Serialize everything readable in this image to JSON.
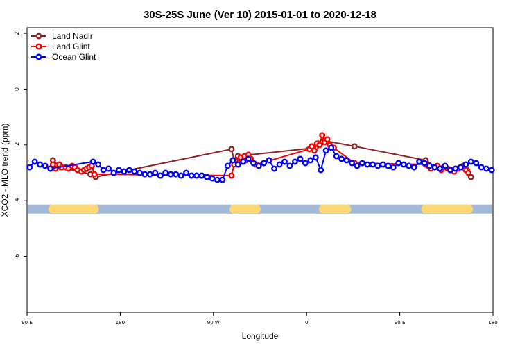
{
  "chart_data": {
    "type": "line",
    "title": "30S-25S June (Ver 10)   2015-01-01 to 2020-12-18",
    "xlabel": "Longitude",
    "ylabel": "XCO2 - MLO trend (ppm)",
    "xlim": [
      0,
      360
    ],
    "ylim": [
      -8,
      2.2
    ],
    "x_ticks": [
      {
        "value": 0,
        "label": "90 E"
      },
      {
        "value": 72,
        "label": "180"
      },
      {
        "value": 144,
        "label": "90 W"
      },
      {
        "value": 216,
        "label": "0"
      },
      {
        "value": 288,
        "label": "90 E"
      },
      {
        "value": 360,
        "label": "180"
      }
    ],
    "y_ticks": [
      {
        "value": 2,
        "label": "2"
      },
      {
        "value": 0,
        "label": "0"
      },
      {
        "value": -2,
        "label": "-2"
      },
      {
        "value": -4,
        "label": "-4"
      },
      {
        "value": -6,
        "label": "-6"
      }
    ],
    "legend_position": "top-left",
    "band": {
      "y": -4.3,
      "ocean_color": "#a3b9d8",
      "land_color": "#fcd774",
      "land_segments": [
        [
          20,
          52
        ],
        [
          160,
          177
        ],
        [
          229,
          243
        ],
        [
          246,
          247
        ],
        [
          308,
          341
        ]
      ]
    },
    "series": [
      {
        "name": "Land Nadir",
        "color": "#8b2323",
        "x": [
          20,
          26,
          49,
          53,
          158,
          160,
          163,
          223,
          225,
          228,
          230,
          253,
          308,
          310,
          340,
          343
        ],
        "y": [
          -2.55,
          -2.8,
          -3.05,
          -3.15,
          -2.15,
          -2.55,
          -2.4,
          -2.1,
          -1.95,
          -1.9,
          -1.85,
          -2.05,
          -2.55,
          -2.7,
          -2.9,
          -3.15
        ]
      },
      {
        "name": "Land Glint",
        "color": "#ff0000",
        "x": [
          20,
          22,
          25,
          27,
          30,
          32,
          35,
          37,
          39,
          42,
          44,
          46,
          48,
          50,
          52,
          158,
          160,
          161,
          163,
          165,
          166,
          168,
          169,
          171,
          173,
          175,
          177,
          218,
          220,
          222,
          224,
          226,
          228,
          230,
          232,
          234,
          237,
          253,
          308,
          310,
          312,
          315,
          317,
          320,
          322,
          325,
          327,
          330,
          333,
          335,
          337,
          339,
          341
        ],
        "y": [
          -2.7,
          -2.85,
          -2.7,
          -2.8,
          -2.8,
          -2.85,
          -2.75,
          -2.8,
          -2.9,
          -2.95,
          -2.9,
          -2.85,
          -2.8,
          -2.75,
          -3.05,
          -3.1,
          -2.7,
          -2.55,
          -2.7,
          -2.45,
          -2.6,
          -2.4,
          -2.55,
          -2.35,
          -2.5,
          -2.65,
          -2.7,
          -2.15,
          -2.05,
          -2.2,
          -1.95,
          -2.0,
          -1.65,
          -1.9,
          -1.8,
          -2.0,
          -2.1,
          -2.65,
          -2.7,
          -2.75,
          -2.85,
          -2.8,
          -2.75,
          -2.9,
          -2.8,
          -2.85,
          -2.9,
          -2.95,
          -2.85,
          -2.8,
          -2.75,
          -2.9,
          -3.0
        ]
      },
      {
        "name": "Ocean Glint",
        "color": "#0000ff",
        "x": [
          2,
          6,
          10,
          14,
          18,
          51,
          55,
          59,
          63,
          67,
          71,
          75,
          79,
          83,
          87,
          91,
          95,
          99,
          103,
          107,
          111,
          115,
          119,
          123,
          127,
          131,
          135,
          139,
          143,
          147,
          151,
          155,
          159,
          163,
          167,
          171,
          175,
          179,
          183,
          187,
          191,
          195,
          199,
          203,
          207,
          211,
          215,
          219,
          223,
          227,
          231,
          235,
          239,
          243,
          247,
          251,
          255,
          259,
          263,
          267,
          271,
          275,
          279,
          283,
          287,
          291,
          295,
          299,
          303,
          307,
          311,
          315,
          319,
          323,
          327,
          331,
          335,
          339,
          343,
          347,
          351,
          355,
          359
        ],
        "y": [
          -2.8,
          -2.6,
          -2.7,
          -2.75,
          -2.85,
          -2.6,
          -2.7,
          -2.9,
          -2.85,
          -3.0,
          -2.9,
          -2.95,
          -2.9,
          -2.95,
          -3.0,
          -3.05,
          -3.05,
          -3.0,
          -3.1,
          -3.0,
          -3.05,
          -3.05,
          -3.1,
          -3.0,
          -3.1,
          -3.1,
          -3.1,
          -3.15,
          -3.2,
          -3.25,
          -3.25,
          -2.75,
          -2.55,
          -2.7,
          -2.6,
          -2.5,
          -2.65,
          -2.75,
          -2.65,
          -2.55,
          -2.85,
          -2.7,
          -2.6,
          -2.75,
          -2.6,
          -2.5,
          -2.65,
          -2.55,
          -2.45,
          -2.9,
          -2.2,
          -2.1,
          -2.4,
          -2.5,
          -2.55,
          -2.65,
          -2.75,
          -2.65,
          -2.7,
          -2.7,
          -2.75,
          -2.7,
          -2.75,
          -2.8,
          -2.65,
          -2.7,
          -2.75,
          -2.8,
          -2.6,
          -2.65,
          -2.75,
          -2.8,
          -2.85,
          -2.75,
          -2.9,
          -2.85,
          -2.8,
          -2.7,
          -2.6,
          -2.65,
          -2.8,
          -2.85,
          -2.9
        ]
      }
    ]
  }
}
